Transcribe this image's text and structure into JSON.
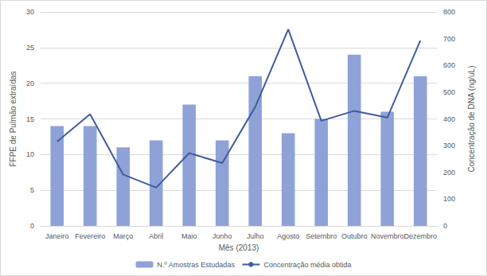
{
  "chart_data": {
    "type": "bar",
    "x_label": "Mês (2013)",
    "y_label": "FFPE de Pulmão extraídas",
    "y2_label": "Concentração de DNA (ng/uL)",
    "categories": [
      "Janeiro",
      "Fevereiro",
      "Março",
      "Abril",
      "Maio",
      "Junho",
      "Julho",
      "Agosto",
      "Setembro",
      "Outubro",
      "Novembro",
      "Dezembro"
    ],
    "series": [
      {
        "name": "N.º Amostras Estudadas",
        "type": "bar",
        "color": "#8fa2d8",
        "values": [
          14,
          14,
          11,
          12,
          17,
          12,
          21,
          13,
          15,
          24,
          16,
          21
        ]
      },
      {
        "name": "Concentração média obtida",
        "type": "line",
        "color": "#3f5c9f",
        "axis": "y2",
        "line_style": "solid",
        "values": [
          315,
          418,
          192,
          143,
          272,
          235,
          445,
          735,
          393,
          430,
          405,
          693
        ]
      }
    ],
    "ylim": [
      0,
      30
    ],
    "yticks": [
      0,
      5,
      10,
      15,
      20,
      25,
      30
    ],
    "y2lim": [
      0,
      800
    ],
    "y2ticks": [
      0,
      100,
      200,
      300,
      400,
      500,
      600,
      700,
      800
    ],
    "grid": true,
    "legend": "bottom"
  }
}
